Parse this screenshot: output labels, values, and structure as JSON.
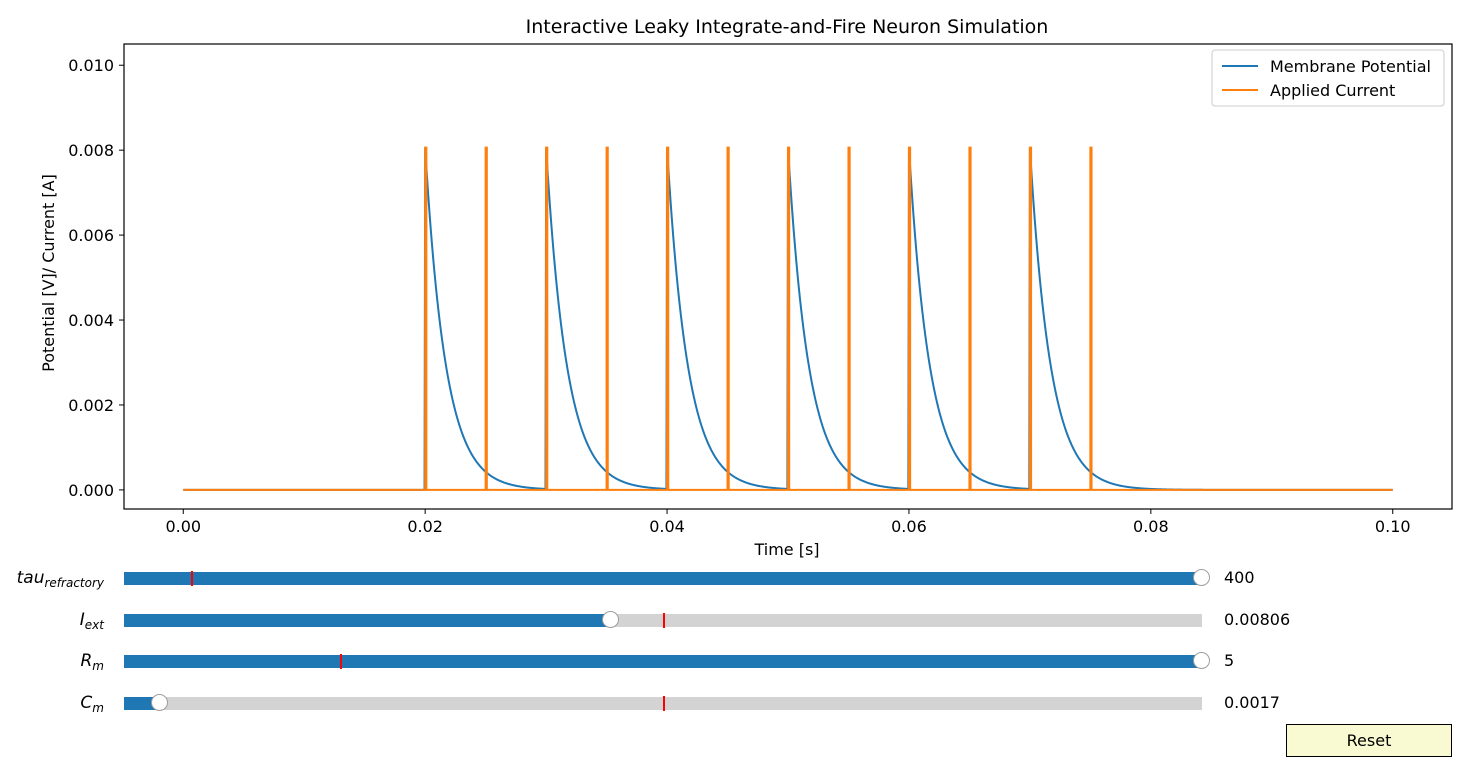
{
  "chart_data": {
    "type": "line",
    "title": "Interactive Leaky Integrate-and-Fire Neuron Simulation",
    "xlabel": "Time [s]",
    "ylabel": "Potential [V]/ Current [A]",
    "xlim": [
      -0.0049,
      0.1049
    ],
    "ylim": [
      -0.00045,
      0.0105
    ],
    "xticks": [
      0.0,
      0.02,
      0.04,
      0.06,
      0.08,
      0.1
    ],
    "xtick_labels": [
      "0.00",
      "0.02",
      "0.04",
      "0.06",
      "0.08",
      "0.10"
    ],
    "yticks": [
      0.0,
      0.002,
      0.004,
      0.006,
      0.008,
      0.01
    ],
    "ytick_labels": [
      "0.000",
      "0.002",
      "0.004",
      "0.006",
      "0.008",
      "0.010"
    ],
    "grid": false,
    "legend_position": "top-right",
    "series": [
      {
        "name": "Membrane Potential",
        "color": "#1f77b4",
        "description_values": {
          "spike_times": [
            0.02,
            0.03,
            0.04,
            0.05,
            0.06,
            0.07
          ],
          "peak": 0.00806,
          "decay_tau": 0.0017,
          "t_end": 0.1
        }
      },
      {
        "name": "Applied Current",
        "color": "#ff7f0e",
        "description_values": {
          "pulse_times": [
            0.02,
            0.025,
            0.03,
            0.035,
            0.04,
            0.045,
            0.05,
            0.055,
            0.06,
            0.065,
            0.07,
            0.075
          ],
          "amplitude": 0.00806,
          "baseline": 0.0,
          "t_end": 0.1
        }
      }
    ]
  },
  "sliders": [
    {
      "id": "tau",
      "label_main": "tau",
      "label_sub": "refractory",
      "value_text": "400",
      "fill_fraction": 1.0,
      "init_fraction": 0.062
    },
    {
      "id": "iext",
      "label_main": "I",
      "label_sub": "ext",
      "value_text": "0.00806",
      "fill_fraction": 0.452,
      "init_fraction": 0.5
    },
    {
      "id": "rm",
      "label_main": "R",
      "label_sub": "m",
      "value_text": "5",
      "fill_fraction": 1.0,
      "init_fraction": 0.2
    },
    {
      "id": "cm",
      "label_main": "C",
      "label_sub": "m",
      "value_text": "0.0017",
      "fill_fraction": 0.033,
      "init_fraction": 0.5
    }
  ],
  "reset_label": "Reset"
}
